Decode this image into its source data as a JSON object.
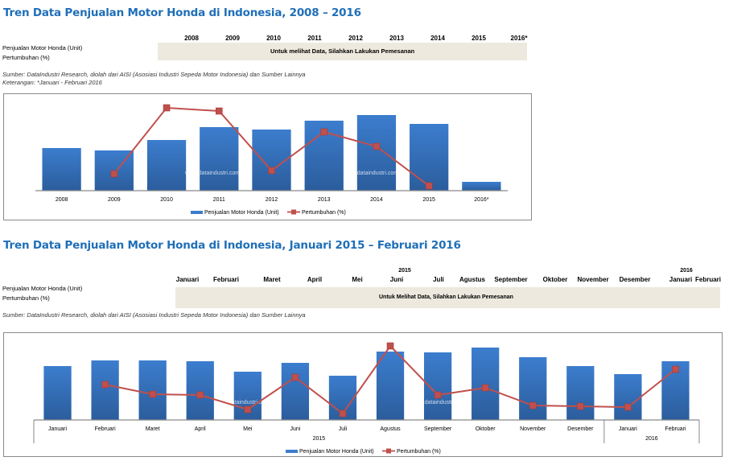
{
  "section1": {
    "title": "Tren Data Penjualan Motor Honda di Indonesia, 2008 – 2016",
    "row_labels": [
      "Penjualan Motor Honda (Unit)",
      "Pertumbuhan (%)"
    ],
    "columns": [
      "2008",
      "2009",
      "2010",
      "2011",
      "2012",
      "2013",
      "2014",
      "2015",
      "2016*"
    ],
    "band_text": "Untuk melihat Data, Silahkan Lakukan Pemesanan",
    "source": "Sumber: DataIndustri Research, diolah dari AISI (Asosiasi Industri Sepeda Motor Indonesia) dan Sumber Lainnya",
    "footnote": "Keterangan: *Januari - Februari 2016"
  },
  "section2": {
    "title": "Tren Data Penjualan Motor Honda di Indonesia, Januari 2015 – Februari 2016",
    "row_labels": [
      "Penjualan Motor Honda (Unit)",
      "Pertumbuhan (%)"
    ],
    "year_labels": [
      "2015",
      "2016"
    ],
    "columns": [
      "Januari",
      "Februari",
      "Maret",
      "April",
      "Mei",
      "Juni",
      "Juli",
      "Agustus",
      "September",
      "Oktober",
      "November",
      "Desember",
      "Januari",
      "Februari"
    ],
    "band_text": "Untuk Melihat  Data, Silahkan  Lakukan Pemesanan",
    "source": "Sumber: DataIndustri Research, diolah dari AISI (Asosiasi Industri Sepeda Motor Indonesia) dan Sumber Lainnya"
  },
  "colors": {
    "title": "#1f6fb8",
    "bar_top": "#3c7dce",
    "bar_bottom": "#2b5d9c",
    "line": "#c0504d",
    "band": "#ede9de"
  },
  "chart_data": [
    {
      "type": "bar",
      "title": "",
      "xlabel": "",
      "ylabel": "",
      "watermark": "www.dataindustri.com",
      "categories": [
        "2008",
        "2009",
        "2010",
        "2011",
        "2012",
        "2013",
        "2014",
        "2015",
        "2016*"
      ],
      "series": [
        {
          "name": "Penjualan Motor Honda (Unit)",
          "kind": "bar",
          "values": [
            53,
            50,
            63,
            79,
            76,
            87,
            94,
            83,
            11
          ]
        },
        {
          "name": "Pertumbuhan (%)",
          "kind": "line",
          "values": [
            null,
            21,
            103,
            99,
            25,
            73,
            55,
            6,
            null
          ]
        }
      ],
      "ylim": [
        0,
        120
      ],
      "value_note": "relative index; no axis values shown",
      "legend": "bottom",
      "grid": false
    },
    {
      "type": "bar",
      "title": "",
      "xlabel": "",
      "ylabel": "",
      "watermark": "www.dataindustri.com",
      "categories": [
        "Januari",
        "Februari",
        "Maret",
        "April",
        "Mei",
        "Juni",
        "Juli",
        "Agustus",
        "September",
        "Oktober",
        "November",
        "Desember",
        "Januari",
        "Februari"
      ],
      "groups": [
        {
          "label": "2015",
          "count": 12
        },
        {
          "label": "2016",
          "count": 2
        }
      ],
      "series": [
        {
          "name": "Penjualan Motor Honda (Unit)",
          "kind": "bar",
          "values": [
            67,
            74,
            74,
            73,
            60,
            71,
            55,
            85,
            84,
            90,
            78,
            67,
            57,
            73
          ]
        },
        {
          "name": "Pertumbuhan (%)",
          "kind": "line",
          "values": [
            null,
            44,
            32,
            31,
            13,
            53,
            8,
            92,
            31,
            40,
            18,
            17,
            16,
            63
          ]
        }
      ],
      "ylim": [
        0,
        100
      ],
      "value_note": "relative index; no axis values shown",
      "legend": "bottom",
      "grid": false
    }
  ]
}
